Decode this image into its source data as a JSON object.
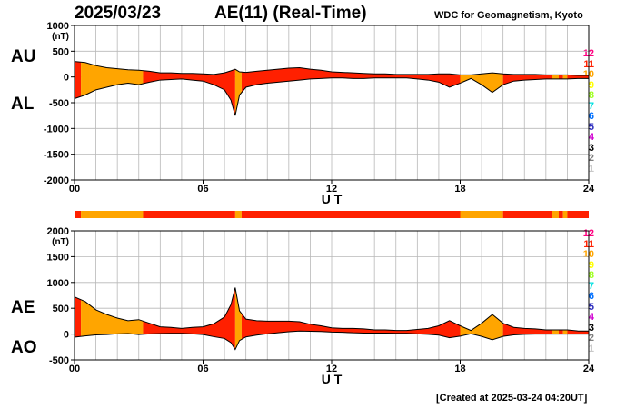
{
  "header": {
    "date": "2025/03/23",
    "title": "AE(11) (Real-Time)",
    "source": "WDC for Geomagnetism, Kyoto"
  },
  "footer": {
    "created": "[Created at 2025-03-24 04:20UT]"
  },
  "level_legend": [
    {
      "label": "12",
      "color": "#ff0080"
    },
    {
      "label": "11",
      "color": "#ff2000"
    },
    {
      "label": "10",
      "color": "#ffa500"
    },
    {
      "label": "9",
      "color": "#ffff00"
    },
    {
      "label": "8",
      "color": "#a0ff20"
    },
    {
      "label": "7",
      "color": "#00e0e0"
    },
    {
      "label": "6",
      "color": "#0070ff"
    },
    {
      "label": "5",
      "color": "#3030c0"
    },
    {
      "label": "4",
      "color": "#d000d0"
    },
    {
      "label": "3",
      "color": "#000000"
    },
    {
      "label": "2",
      "color": "#808080"
    },
    {
      "label": "1",
      "color": "#c8c8c8"
    }
  ],
  "panel_top": {
    "label_upper": "AU",
    "label_lower": "AL"
  },
  "panel_bottom": {
    "label_upper": "AE",
    "label_lower": "AO"
  },
  "chart_data": [
    {
      "type": "area",
      "panel": "AU/AL",
      "xlabel": "U T",
      "ylabel": "(nT)",
      "xlim": [
        0,
        24
      ],
      "ylim": [
        -2000,
        1000
      ],
      "xticks": [
        "00",
        "06",
        "12",
        "18",
        "24"
      ],
      "yticks": [
        "1000",
        "500",
        "0",
        "-500",
        "-1000",
        "-1500",
        "-2000"
      ],
      "grid": true,
      "x": [
        0,
        0.5,
        1,
        1.5,
        2,
        2.5,
        3,
        3.5,
        4,
        4.5,
        5,
        5.5,
        6,
        6.5,
        7,
        7.3,
        7.5,
        7.7,
        8,
        8.5,
        9,
        9.5,
        10,
        10.5,
        11,
        11.5,
        12,
        12.5,
        13,
        13.5,
        14,
        14.5,
        15,
        15.5,
        16,
        16.5,
        17,
        17.5,
        18,
        18.5,
        19,
        19.5,
        20,
        20.5,
        21,
        21.5,
        22,
        22.5,
        23,
        23.5,
        24
      ],
      "series": [
        {
          "name": "AU",
          "values": [
            300,
            280,
            220,
            180,
            160,
            140,
            130,
            110,
            80,
            80,
            70,
            70,
            60,
            50,
            80,
            120,
            150,
            100,
            90,
            110,
            130,
            150,
            170,
            180,
            150,
            130,
            100,
            90,
            80,
            70,
            60,
            60,
            50,
            50,
            50,
            50,
            60,
            60,
            40,
            40,
            60,
            80,
            60,
            50,
            50,
            50,
            40,
            40,
            40,
            30,
            30
          ]
        },
        {
          "name": "AL",
          "values": [
            -420,
            -350,
            -250,
            -200,
            -150,
            -120,
            -150,
            -100,
            -60,
            -50,
            -40,
            -60,
            -80,
            -150,
            -250,
            -450,
            -750,
            -350,
            -200,
            -150,
            -120,
            -100,
            -80,
            -60,
            -40,
            -30,
            -20,
            -20,
            -30,
            -30,
            -20,
            -20,
            -20,
            -20,
            -40,
            -60,
            -100,
            -200,
            -120,
            -30,
            -150,
            -300,
            -150,
            -80,
            -60,
            -50,
            -40,
            -40,
            -40,
            -30,
            -30
          ]
        }
      ]
    },
    {
      "type": "area",
      "panel": "AE/AO",
      "xlabel": "U T",
      "ylabel": "(nT)",
      "xlim": [
        0,
        24
      ],
      "ylim": [
        -500,
        2000
      ],
      "xticks": [
        "00",
        "06",
        "12",
        "18",
        "24"
      ],
      "yticks": [
        "2000",
        "1500",
        "1000",
        "500",
        "0",
        "-500"
      ],
      "grid": true,
      "x": [
        0,
        0.5,
        1,
        1.5,
        2,
        2.5,
        3,
        3.5,
        4,
        4.5,
        5,
        5.5,
        6,
        6.5,
        7,
        7.3,
        7.5,
        7.7,
        8,
        8.5,
        9,
        9.5,
        10,
        10.5,
        11,
        11.5,
        12,
        12.5,
        13,
        13.5,
        14,
        14.5,
        15,
        15.5,
        16,
        16.5,
        17,
        17.5,
        18,
        18.5,
        19,
        19.5,
        20,
        20.5,
        21,
        21.5,
        22,
        22.5,
        23,
        23.5,
        24
      ],
      "series": [
        {
          "name": "AE",
          "values": [
            720,
            630,
            470,
            380,
            310,
            260,
            280,
            210,
            140,
            130,
            110,
            130,
            140,
            200,
            330,
            570,
            900,
            450,
            290,
            260,
            250,
            250,
            250,
            240,
            190,
            160,
            120,
            110,
            110,
            100,
            80,
            80,
            70,
            70,
            90,
            110,
            160,
            260,
            160,
            70,
            210,
            380,
            210,
            130,
            110,
            100,
            80,
            80,
            80,
            60,
            60
          ]
        },
        {
          "name": "AO",
          "values": [
            -60,
            -35,
            -15,
            -10,
            5,
            10,
            -10,
            5,
            10,
            15,
            15,
            5,
            -10,
            -50,
            -85,
            -165,
            -300,
            -125,
            -55,
            -20,
            5,
            25,
            45,
            60,
            55,
            50,
            40,
            35,
            25,
            20,
            20,
            20,
            15,
            15,
            5,
            -5,
            -20,
            -70,
            -40,
            5,
            -45,
            -110,
            -45,
            -15,
            -5,
            0,
            0,
            0,
            0,
            0,
            0
          ]
        }
      ]
    }
  ],
  "activity_bar": [
    {
      "from": 0,
      "to": 0.3,
      "level": "11"
    },
    {
      "from": 0.3,
      "to": 0.7,
      "level": "10"
    },
    {
      "from": 0.7,
      "to": 3.2,
      "level": "10"
    },
    {
      "from": 3.2,
      "to": 7.5,
      "level": "11"
    },
    {
      "from": 7.5,
      "to": 7.8,
      "level": "10"
    },
    {
      "from": 7.8,
      "to": 18.0,
      "level": "11"
    },
    {
      "from": 18.0,
      "to": 20.0,
      "level": "10"
    },
    {
      "from": 20.0,
      "to": 22.3,
      "level": "11"
    },
    {
      "from": 22.3,
      "to": 22.6,
      "level": "10"
    },
    {
      "from": 22.6,
      "to": 22.8,
      "level": "11"
    },
    {
      "from": 22.8,
      "to": 23.0,
      "level": "10"
    },
    {
      "from": 23.0,
      "to": 24.0,
      "level": "11"
    }
  ]
}
